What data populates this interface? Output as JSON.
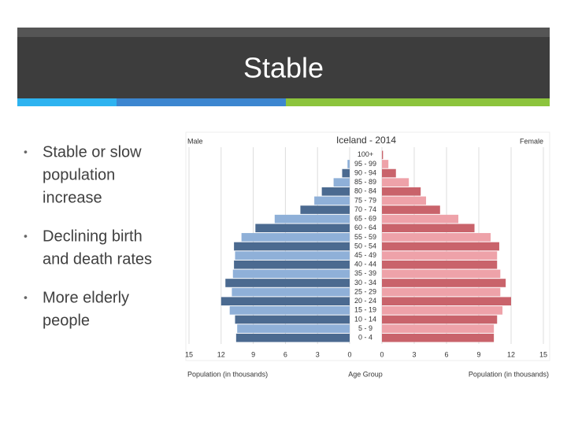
{
  "slide": {
    "title": "Stable",
    "bullets": [
      [
        "Stable or slow",
        "population",
        "increase"
      ],
      [
        "Declining birth",
        "and death rates"
      ],
      [
        "More elderly",
        "people"
      ]
    ]
  },
  "chart_data": {
    "type": "pyramid",
    "title": "Iceland - 2014",
    "categories": [
      "0 - 4",
      "5 - 9",
      "10 - 14",
      "15 - 19",
      "20 - 24",
      "25 - 29",
      "30 - 34",
      "35 - 39",
      "40 - 44",
      "45 - 49",
      "50 - 54",
      "55 - 59",
      "60 - 64",
      "65 - 69",
      "70 - 74",
      "75 - 79",
      "80 - 84",
      "85 - 89",
      "90 - 94",
      "95 - 99",
      "100+"
    ],
    "series": [
      {
        "name": "Male",
        "colors": [
          "#4b6a90",
          "#8fb0d8"
        ],
        "values": [
          10.6,
          10.5,
          10.7,
          11.2,
          12.0,
          11.0,
          11.6,
          10.9,
          10.8,
          10.7,
          10.8,
          10.1,
          8.8,
          7.0,
          4.6,
          3.3,
          2.6,
          1.5,
          0.7,
          0.2,
          0
        ]
      },
      {
        "name": "Female",
        "colors": [
          "#c9636b",
          "#eea2a9"
        ],
        "values": [
          10.4,
          10.4,
          10.7,
          11.2,
          12.0,
          11.0,
          11.5,
          11.0,
          10.7,
          10.7,
          10.9,
          10.1,
          8.6,
          7.1,
          5.4,
          4.1,
          3.6,
          2.5,
          1.3,
          0.6,
          0.1
        ]
      }
    ],
    "xlim": [
      0,
      15
    ],
    "xticks": [
      0,
      3,
      6,
      9,
      12,
      15
    ],
    "grid": true,
    "x_labels": [
      "Population (in thousands)",
      "Age Group",
      "Population (in thousands)"
    ]
  }
}
